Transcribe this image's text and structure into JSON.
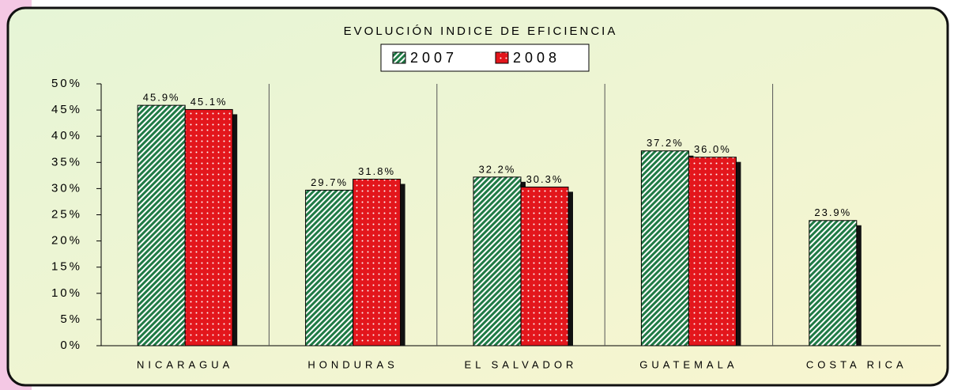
{
  "chart_data": {
    "type": "bar",
    "title": "EVOLUCIÓN INDICE DE EFICIENCIA",
    "categories": [
      "NICARAGUA",
      "HONDURAS",
      "EL SALVADOR",
      "GUATEMALA",
      "COSTA RICA"
    ],
    "series": [
      {
        "name": "2007",
        "color": "#1f7a45",
        "values": [
          45.9,
          29.7,
          32.2,
          37.2,
          23.9
        ],
        "value_labels": [
          "45.9%",
          "29.7%",
          "32.2%",
          "37.2%",
          "23.9%"
        ]
      },
      {
        "name": "2008",
        "color": "#e3161c",
        "values": [
          45.1,
          31.8,
          30.3,
          36.0,
          null
        ],
        "value_labels": [
          "45.1%",
          "31.8%",
          "30.3%",
          "36.0%",
          null
        ]
      }
    ],
    "ylim": [
      0,
      50
    ],
    "yticks": [
      {
        "value": 0,
        "label": "0%"
      },
      {
        "value": 5,
        "label": "5%"
      },
      {
        "value": 10,
        "label": "10%"
      },
      {
        "value": 15,
        "label": "15%"
      },
      {
        "value": 20,
        "label": "20%"
      },
      {
        "value": 25,
        "label": "25%"
      },
      {
        "value": 30,
        "label": "30%"
      },
      {
        "value": 35,
        "label": "35%"
      },
      {
        "value": 40,
        "label": "40%"
      },
      {
        "value": 45,
        "label": "45%"
      },
      {
        "value": 50,
        "label": "50%"
      }
    ]
  }
}
